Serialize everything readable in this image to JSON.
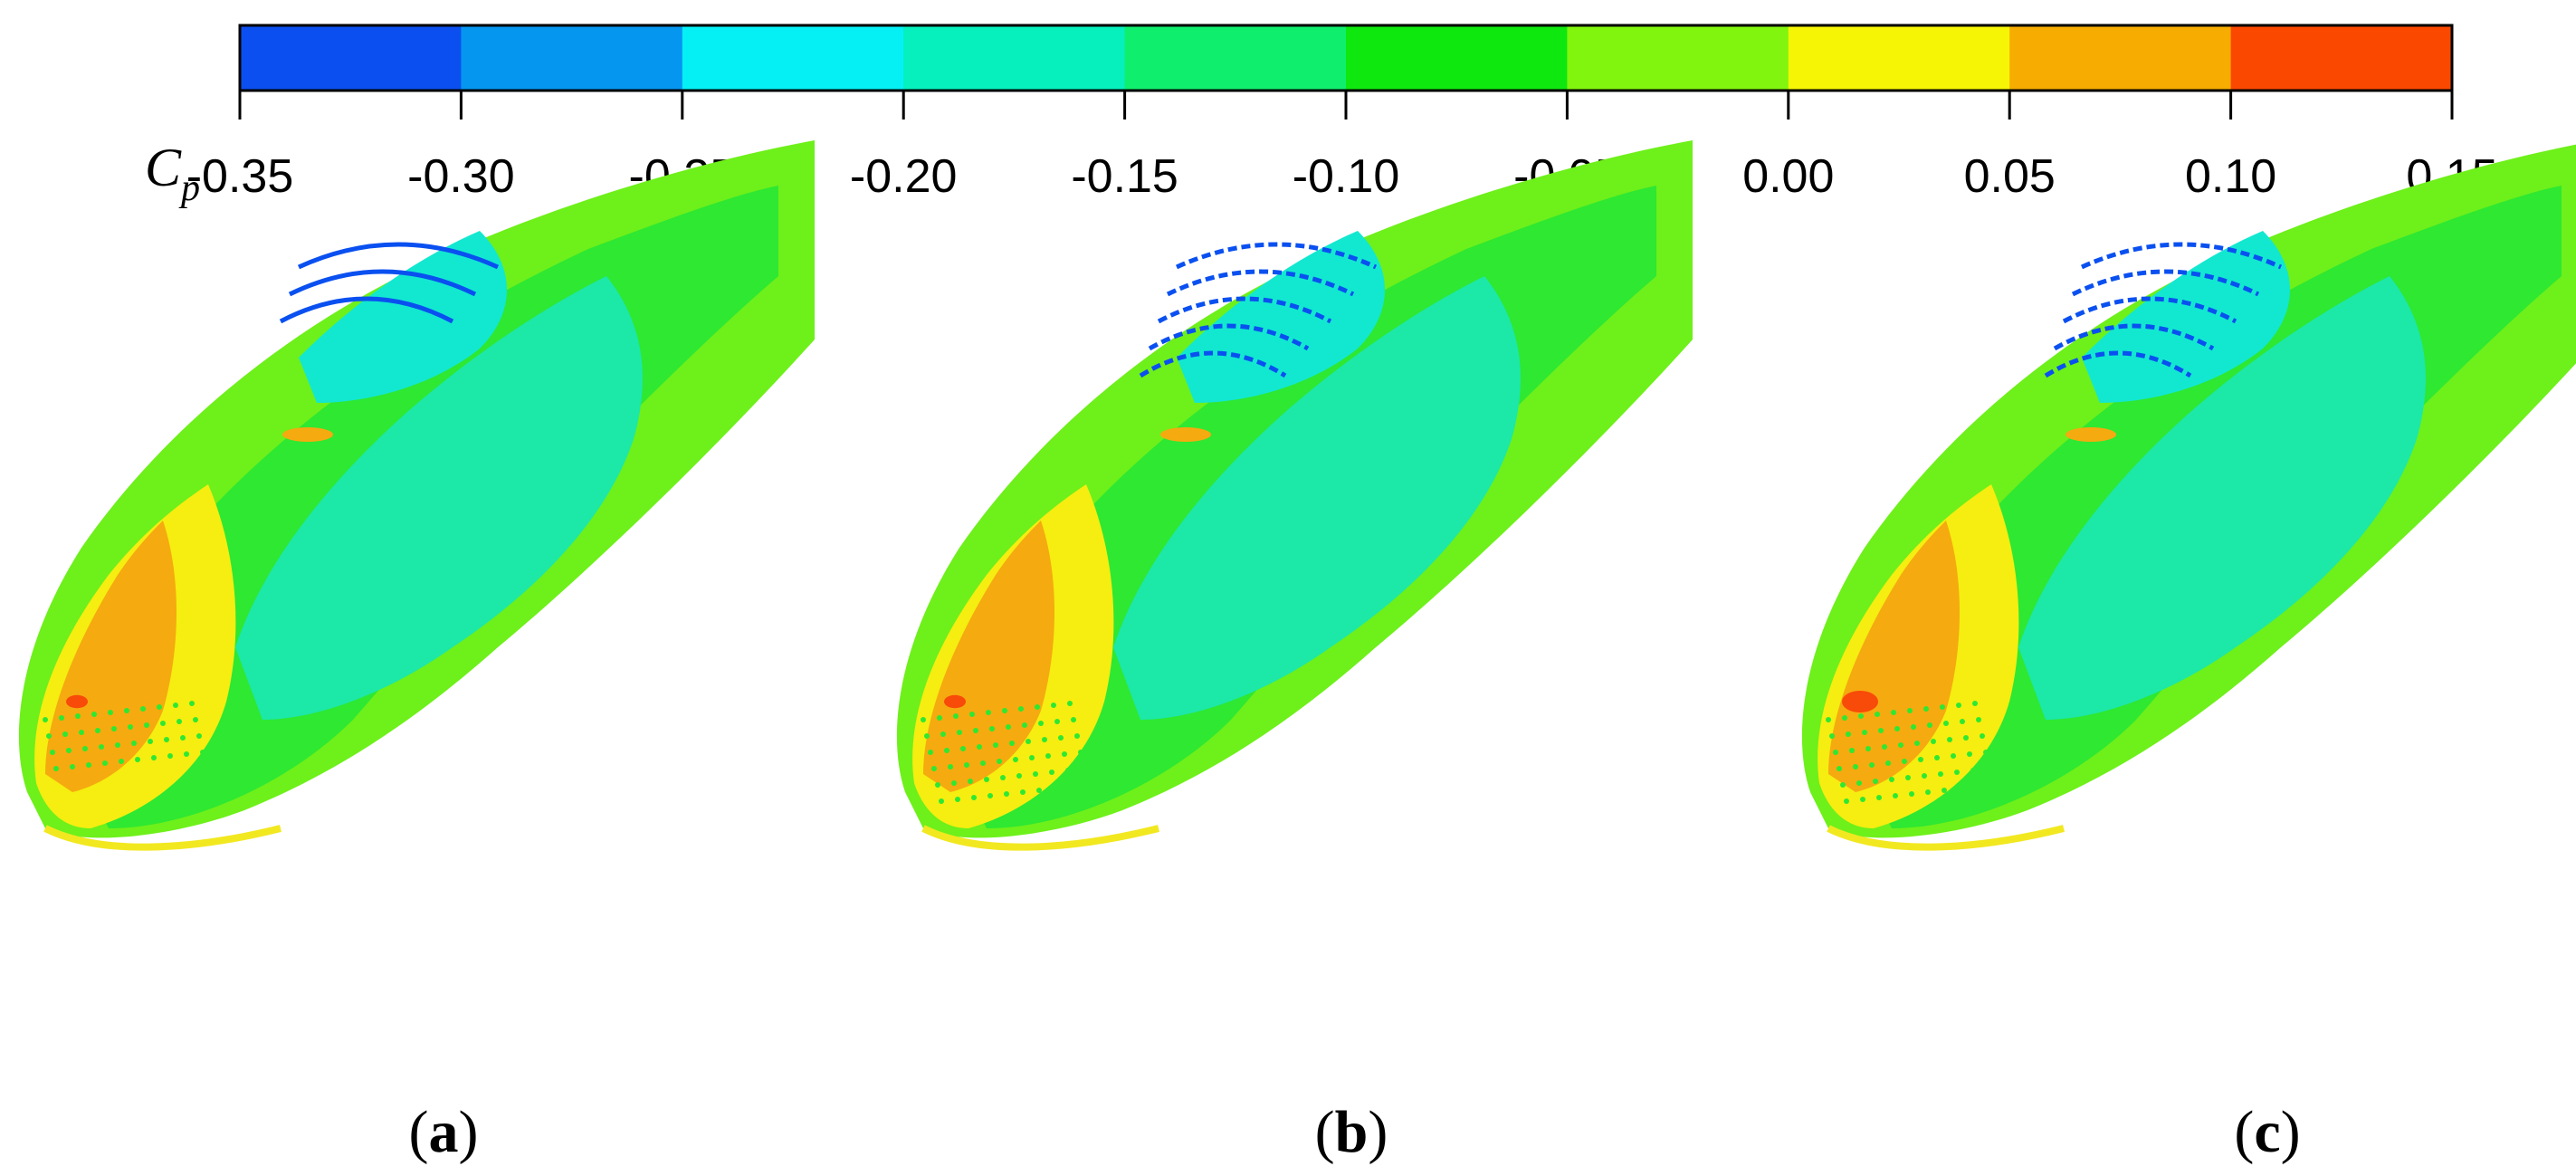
{
  "colorbar": {
    "variable_symbol": "C",
    "variable_subscript": "p",
    "ticks": [
      "-0.35",
      "-0.30",
      "-0.25",
      "-0.20",
      "-0.15",
      "-0.10",
      "-0.05",
      "0.00",
      "0.05",
      "0.10",
      "0.15"
    ],
    "colors": [
      "#0b4ff0",
      "#0596f0",
      "#05f0f5",
      "#05f0bc",
      "#10ee6e",
      "#0ee80e",
      "#82f50e",
      "#f5f505",
      "#f6ac00",
      "#fb4800"
    ]
  },
  "panels": [
    {
      "open": "(",
      "letter": "a",
      "close": ")"
    },
    {
      "open": "(",
      "letter": "b",
      "close": ")"
    },
    {
      "open": "(",
      "letter": "c",
      "close": ")"
    }
  ],
  "surface_colors": {
    "body_far": "#6ef01a",
    "body_mid": "#2ee832",
    "nose_blue": "#1ce8a8",
    "nose_cyan": "#12e8d0",
    "slot_cyan": "#05e0ee",
    "slot_blue": "#0a50f0",
    "stagnation_yellow": "#f5ee10",
    "stagnation_orange": "#f5aa10",
    "stagnation_red": "#f84a08",
    "rim_yellow": "#f2e820"
  }
}
